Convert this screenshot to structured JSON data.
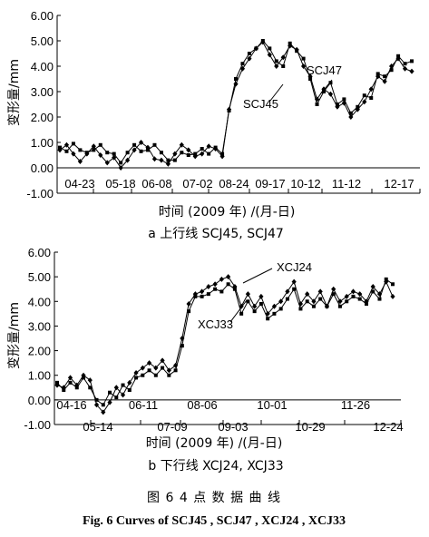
{
  "figure_title_cn": "图 6    4 点 数 据 曲 线",
  "figure_title_en": "Fig. 6    Curves of SCJ45 , SCJ47 , XCJ24 , XCJ33",
  "chart_data": [
    {
      "type": "line",
      "caption": "a  上行线 SCJ45, SCJ47",
      "xlabel": "时间 (2009 年) /(月-日)",
      "ylabel": "变形量/mm",
      "ylim": [
        -1.0,
        6.0
      ],
      "ytick_labels": [
        "6.00",
        "5.00",
        "4.00",
        "3.00",
        "2.00",
        "1.00",
        "0.00",
        "-1.00"
      ],
      "yticks": [
        6,
        5,
        4,
        3,
        2,
        1,
        0,
        -1
      ],
      "xtick_labels": [
        "04-23",
        "05-18",
        "06-08",
        "07-02",
        "08-24",
        "09-17",
        "10-12",
        "11-12",
        "12-17"
      ],
      "grid": false,
      "series": [
        {
          "name": "SCJ45",
          "marker": "diamond",
          "values": [
            0.7,
            0.9,
            0.55,
            0.25,
            0.55,
            0.85,
            0.5,
            0.2,
            0.4,
            0.0,
            0.3,
            0.7,
            1.0,
            0.8,
            0.35,
            0.3,
            0.15,
            0.55,
            0.9,
            0.7,
            0.45,
            0.55,
            0.85,
            0.75,
            0.45,
            2.3,
            3.3,
            3.9,
            4.3,
            4.7,
            4.95,
            4.45,
            4.0,
            4.35,
            4.8,
            4.65,
            4.0,
            3.6,
            2.7,
            3.1,
            2.9,
            2.4,
            2.55,
            2.0,
            2.3,
            2.6,
            3.1,
            3.6,
            3.4,
            4.0,
            4.3,
            3.9,
            3.8
          ]
        },
        {
          "name": "SCJ47",
          "marker": "square",
          "values": [
            0.8,
            0.65,
            0.95,
            0.7,
            0.6,
            0.7,
            0.9,
            0.6,
            0.55,
            0.2,
            0.6,
            0.9,
            0.65,
            0.7,
            0.9,
            0.6,
            0.3,
            0.3,
            0.6,
            0.5,
            0.55,
            0.75,
            0.55,
            0.8,
            0.55,
            2.25,
            3.5,
            4.1,
            4.5,
            4.7,
            5.0,
            4.7,
            4.2,
            4.0,
            4.9,
            4.6,
            4.3,
            3.5,
            2.5,
            3.0,
            3.35,
            2.5,
            2.7,
            2.15,
            2.4,
            2.85,
            2.75,
            3.7,
            3.6,
            3.85,
            4.4,
            4.1,
            4.2
          ]
        }
      ]
    },
    {
      "type": "line",
      "caption": "b  下行线 XCJ24, XCJ33",
      "xlabel": "时间 (2009 年) /(月-日)",
      "ylabel": "变形量/mm",
      "ylim": [
        -1.0,
        6.0
      ],
      "ytick_labels": [
        "6.00",
        "5.00",
        "4.00",
        "3.00",
        "2.00",
        "1.00",
        "0.00",
        "-1.00"
      ],
      "yticks": [
        6,
        5,
        4,
        3,
        2,
        1,
        0,
        -1
      ],
      "xtick_labels": [
        "04-16",
        "05-14",
        "06-11",
        "07-09",
        "08-06",
        "09-03",
        "10-01",
        "10-29",
        "11-26",
        "12-24"
      ],
      "grid": false,
      "series": [
        {
          "name": "XCJ24",
          "marker": "diamond",
          "values": [
            0.6,
            0.5,
            0.9,
            0.6,
            1.0,
            0.8,
            -0.2,
            -0.5,
            -0.1,
            0.5,
            0.2,
            0.7,
            1.1,
            1.3,
            1.5,
            1.3,
            1.6,
            1.2,
            1.4,
            2.5,
            3.9,
            4.3,
            4.4,
            4.6,
            4.7,
            4.9,
            5.0,
            4.6,
            3.8,
            4.3,
            3.8,
            4.2,
            3.5,
            3.8,
            4.0,
            4.4,
            4.8,
            3.9,
            4.3,
            4.0,
            4.4,
            3.8,
            4.5,
            4.0,
            4.2,
            4.4,
            4.3,
            4.0,
            4.6,
            4.3,
            4.8,
            4.2
          ]
        },
        {
          "name": "XCJ33",
          "marker": "square",
          "values": [
            0.7,
            0.4,
            0.7,
            0.5,
            0.9,
            0.5,
            0.0,
            -0.2,
            0.3,
            0.1,
            0.6,
            0.4,
            0.9,
            1.0,
            1.2,
            1.0,
            1.3,
            1.0,
            1.2,
            2.2,
            3.6,
            4.2,
            4.2,
            4.3,
            4.5,
            4.4,
            4.7,
            4.5,
            3.5,
            4.0,
            3.6,
            3.9,
            3.3,
            3.5,
            3.7,
            4.1,
            4.5,
            3.7,
            4.0,
            3.8,
            4.1,
            3.8,
            4.3,
            3.8,
            4.0,
            4.2,
            4.1,
            3.9,
            4.4,
            4.1,
            4.9,
            4.7
          ]
        }
      ]
    }
  ]
}
